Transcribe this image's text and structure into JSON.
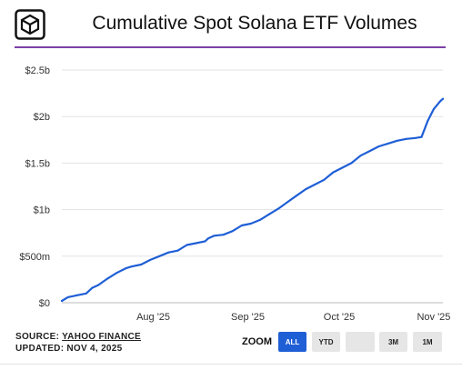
{
  "header": {
    "logo_icon": "cube-logo-icon"
  },
  "chart_data": {
    "type": "line",
    "title": "Cumulative Spot Solana ETF Volumes",
    "xlabel": "",
    "ylabel": "",
    "x_tick_labels": [
      "Aug '25",
      "Sep '25",
      "Oct '25",
      "Nov '25"
    ],
    "y_tick_labels": [
      "$0",
      "$500m",
      "$1b",
      "$1.5b",
      "$2b",
      "$2.5b"
    ],
    "ylim": [
      0,
      2500000000
    ],
    "xlim": [
      "2025-07-02",
      "2025-11-04"
    ],
    "grid": "horizontal",
    "line_color": "#1f5fd6",
    "series": [
      {
        "x": [
          "2025-07-02",
          "2025-07-04",
          "2025-07-07",
          "2025-07-10",
          "2025-07-12",
          "2025-07-14",
          "2025-07-17",
          "2025-07-20",
          "2025-07-23",
          "2025-07-25",
          "2025-07-28",
          "2025-07-31",
          "2025-08-03",
          "2025-08-06",
          "2025-08-09",
          "2025-08-12",
          "2025-08-15",
          "2025-08-18",
          "2025-08-19",
          "2025-08-21",
          "2025-08-24",
          "2025-08-27",
          "2025-08-30",
          "2025-09-02",
          "2025-09-05",
          "2025-09-08",
          "2025-09-11",
          "2025-09-14",
          "2025-09-17",
          "2025-09-20",
          "2025-09-23",
          "2025-09-26",
          "2025-09-29",
          "2025-10-02",
          "2025-10-05",
          "2025-10-08",
          "2025-10-11",
          "2025-10-14",
          "2025-10-17",
          "2025-10-20",
          "2025-10-23",
          "2025-10-26",
          "2025-10-28",
          "2025-10-30",
          "2025-11-01",
          "2025-11-02",
          "2025-11-03",
          "2025-11-04"
        ],
        "values": [
          20000000,
          60000000,
          80000000,
          100000000,
          160000000,
          190000000,
          260000000,
          320000000,
          370000000,
          390000000,
          410000000,
          460000000,
          500000000,
          540000000,
          560000000,
          620000000,
          640000000,
          660000000,
          690000000,
          720000000,
          730000000,
          770000000,
          830000000,
          850000000,
          890000000,
          950000000,
          1010000000,
          1080000000,
          1150000000,
          1220000000,
          1270000000,
          1320000000,
          1400000000,
          1450000000,
          1500000000,
          1580000000,
          1630000000,
          1680000000,
          1710000000,
          1740000000,
          1760000000,
          1770000000,
          1780000000,
          1950000000,
          2080000000,
          2120000000,
          2160000000,
          2190000000
        ]
      }
    ]
  },
  "footer": {
    "source_prefix": "SOURCE: ",
    "source_link": "YAHOO FINANCE",
    "updated": "UPDATED: NOV 4, 2025",
    "zoom_label": "ZOOM",
    "zoom_buttons": [
      "ALL",
      "YTD",
      "",
      "3M",
      "1M"
    ],
    "zoom_active": "ALL"
  }
}
